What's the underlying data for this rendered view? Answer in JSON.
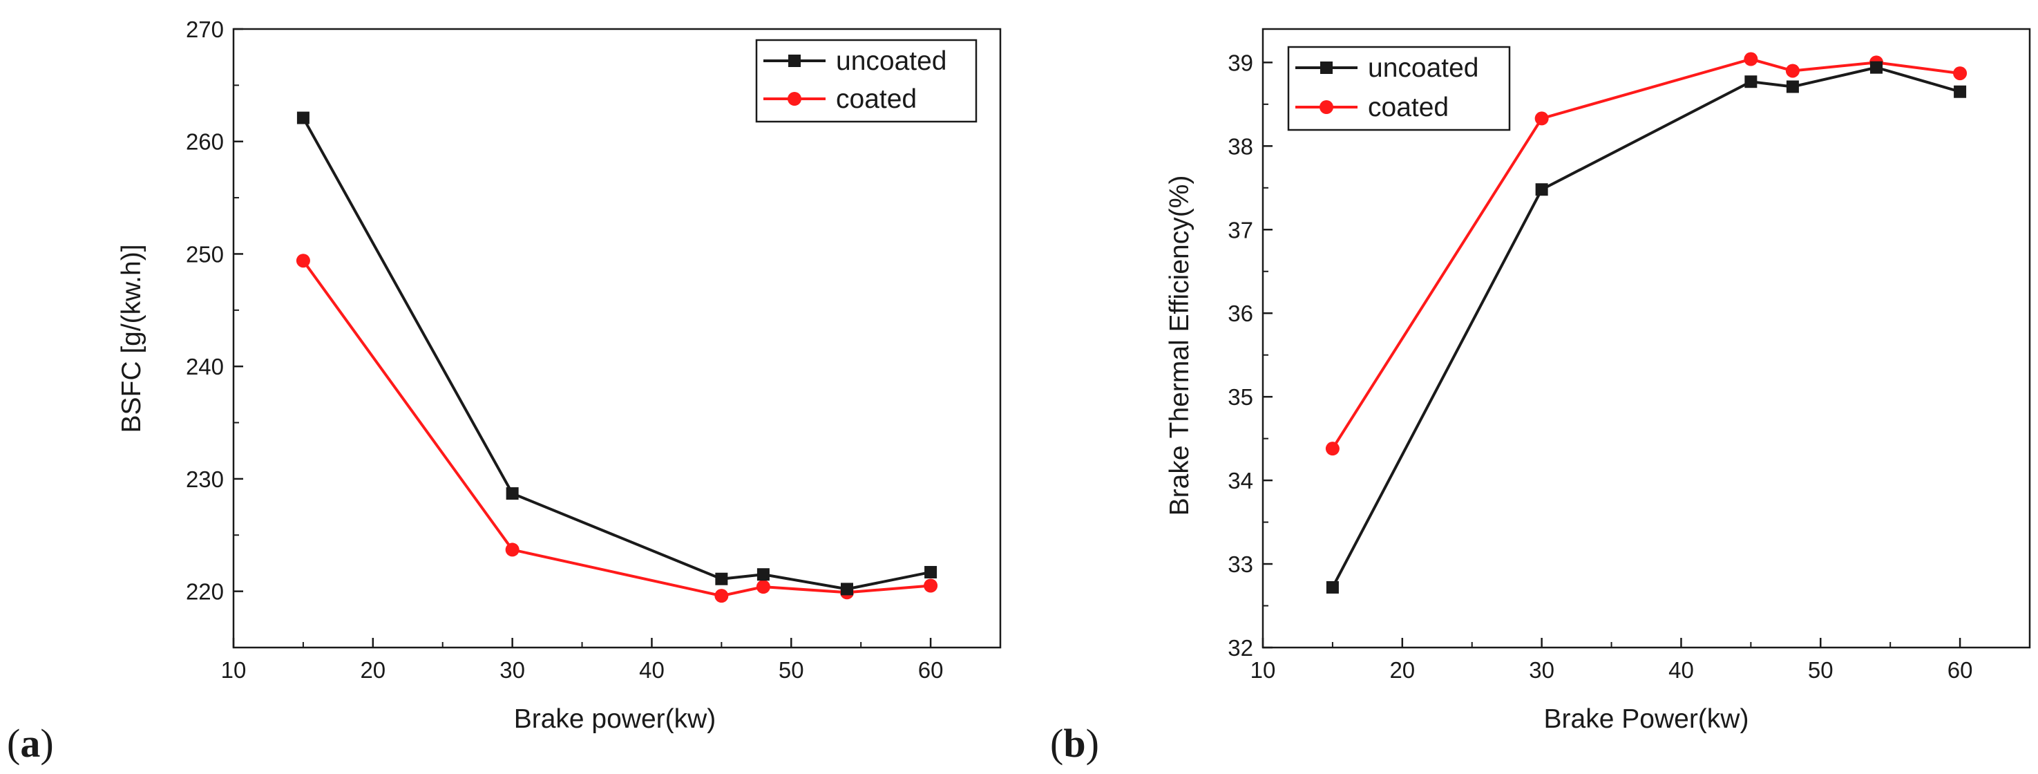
{
  "figure": {
    "panels": [
      {
        "label_open": "(",
        "label_letter": "a",
        "label_close": ")"
      },
      {
        "label_open": "(",
        "label_letter": "b",
        "label_close": ")"
      }
    ]
  },
  "colors": {
    "uncoated": "#1a1a1a",
    "coated": "#ff1a1a",
    "axis": "#1a1a1a",
    "background": "#ffffff"
  },
  "chart_data": [
    {
      "type": "line",
      "title": "",
      "xlabel": "Brake power(kw)",
      "ylabel": "BSFC [g/(kw.h)]",
      "xlim": [
        10,
        65
      ],
      "ylim": [
        215,
        270
      ],
      "xticks": [
        10,
        20,
        30,
        40,
        50,
        60
      ],
      "yticks": [
        220,
        230,
        240,
        250,
        260,
        270
      ],
      "grid": false,
      "legend_position": "top-right",
      "x": [
        15,
        30,
        45,
        48,
        54,
        60
      ],
      "series": [
        {
          "name": "uncoated",
          "marker": "square",
          "values": [
            262.1,
            228.7,
            221.1,
            221.5,
            220.2,
            221.7
          ]
        },
        {
          "name": "coated",
          "marker": "circle",
          "values": [
            249.4,
            223.7,
            219.6,
            220.4,
            219.9,
            220.5
          ]
        }
      ]
    },
    {
      "type": "line",
      "title": "",
      "xlabel": "Brake Power(kw)",
      "ylabel": "Brake Thermal Efficiency(%)",
      "xlim": [
        10,
        65
      ],
      "ylim": [
        32,
        39.4
      ],
      "xticks": [
        10,
        20,
        30,
        40,
        50,
        60
      ],
      "yticks": [
        32,
        33,
        34,
        35,
        36,
        37,
        38,
        39
      ],
      "grid": false,
      "legend_position": "top-left",
      "x": [
        15,
        30,
        45,
        48,
        54,
        60
      ],
      "series": [
        {
          "name": "uncoated",
          "marker": "square",
          "values": [
            32.72,
            37.48,
            38.77,
            38.71,
            38.94,
            38.65
          ]
        },
        {
          "name": "coated",
          "marker": "circle",
          "values": [
            34.38,
            38.33,
            39.04,
            38.9,
            39.0,
            38.87
          ]
        }
      ]
    }
  ]
}
